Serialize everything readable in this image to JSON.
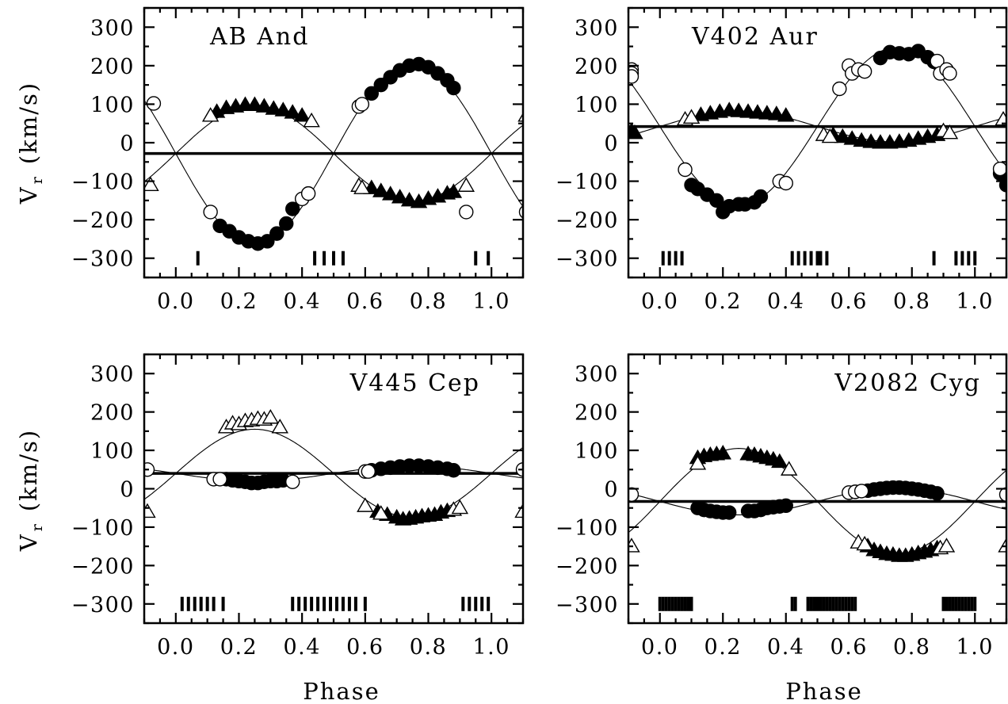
{
  "figure": {
    "x_axis_label": "Phase",
    "y_axis_label_main": "V",
    "y_axis_label_sub": "r",
    "y_axis_label_unit": "(km/s)"
  },
  "chart_data": [
    {
      "type": "scatter",
      "title": "AB And",
      "xlabel": "",
      "ylabel": "Vr (km/s)",
      "xlim": [
        -0.1,
        1.1
      ],
      "ylim": [
        -350,
        350
      ],
      "xticks": [
        0.0,
        0.2,
        0.4,
        0.6,
        0.8,
        1.0
      ],
      "xtick_labels": [
        "0.0",
        "0.2",
        "0.4",
        "0.6",
        "0.8",
        "1.0"
      ],
      "yticks": [
        -300,
        -200,
        -100,
        0,
        100,
        200,
        300
      ],
      "ytick_labels": [
        "−300",
        "−200",
        "−100",
        "0",
        "100",
        "200",
        "300"
      ],
      "gamma": -28,
      "series": [
        {
          "role": "primary-fit",
          "style": "curve",
          "K": 235,
          "sign": -1
        },
        {
          "role": "secondary-fit",
          "style": "curve",
          "K": 125,
          "sign": 1
        },
        {
          "role": "primary",
          "style": "filled-circle",
          "x": [
            0.14,
            0.17,
            0.2,
            0.23,
            0.26,
            0.29,
            0.32,
            0.35,
            0.37,
            0.62,
            0.65,
            0.68,
            0.71,
            0.74,
            0.77,
            0.8,
            0.83,
            0.86,
            0.88
          ],
          "y": [
            -216,
            -230,
            -246,
            -256,
            -262,
            -256,
            -236,
            -210,
            -172,
            128,
            150,
            170,
            188,
            200,
            204,
            196,
            180,
            162,
            142
          ]
        },
        {
          "role": "primary",
          "style": "open-circle",
          "x": [
            -0.07,
            0.11,
            0.4,
            0.42,
            0.58,
            0.59,
            0.92,
            1.11
          ],
          "y": [
            102,
            -180,
            -146,
            -132,
            94,
            100,
            -180,
            -180
          ]
        },
        {
          "role": "secondary",
          "style": "filled-triangle",
          "x": [
            0.13,
            0.16,
            0.19,
            0.22,
            0.25,
            0.28,
            0.31,
            0.34,
            0.37,
            0.4,
            0.62,
            0.65,
            0.68,
            0.71,
            0.74,
            0.77,
            0.8,
            0.83,
            0.86,
            0.88
          ],
          "y": [
            80,
            90,
            94,
            98,
            98,
            94,
            88,
            84,
            78,
            70,
            -118,
            -126,
            -134,
            -142,
            -150,
            -154,
            -146,
            -140,
            -132,
            -128
          ]
        },
        {
          "role": "secondary",
          "style": "open-triangle",
          "x": [
            -0.08,
            0.11,
            0.43,
            0.58,
            0.59,
            0.92,
            1.11
          ],
          "y": [
            -110,
            70,
            56,
            -112,
            -118,
            -112,
            70
          ]
        },
        {
          "role": "observation-epochs",
          "style": "vertical-tick",
          "x": [
            0.07,
            0.44,
            0.47,
            0.5,
            0.53,
            0.95,
            0.99
          ]
        }
      ]
    },
    {
      "type": "scatter",
      "title": "V402 Aur",
      "xlabel": "",
      "ylabel": "",
      "xlim": [
        -0.1,
        1.1
      ],
      "ylim": [
        -350,
        350
      ],
      "xticks": [
        0.0,
        0.2,
        0.4,
        0.6,
        0.8,
        1.0
      ],
      "xtick_labels": [
        "0.0",
        "0.2",
        "0.4",
        "0.6",
        "0.8",
        "1.0"
      ],
      "yticks": [
        -300,
        -200,
        -100,
        0,
        100,
        200,
        300
      ],
      "ytick_labels": [
        "−300",
        "−200",
        "−100",
        "0",
        "100",
        "200",
        "300"
      ],
      "gamma": 42,
      "series": [
        {
          "role": "primary-fit",
          "style": "curve",
          "K": 205,
          "sign": -1
        },
        {
          "role": "secondary-fit",
          "style": "curve",
          "K": 40,
          "sign": 1
        },
        {
          "role": "primary",
          "style": "filled-circle",
          "x": [
            0.1,
            0.12,
            0.15,
            0.18,
            0.2,
            0.22,
            0.25,
            0.27,
            0.3,
            0.32,
            0.7,
            0.73,
            0.76,
            0.79,
            0.82,
            0.85,
            0.87,
            1.08,
            1.1
          ],
          "y": [
            -110,
            -120,
            -135,
            -150,
            -180,
            -165,
            -160,
            -160,
            -155,
            -140,
            220,
            235,
            232,
            230,
            238,
            222,
            210,
            -80,
            -110
          ]
        },
        {
          "role": "primary",
          "style": "open-circle",
          "x": [
            -0.09,
            -0.09,
            -0.09,
            0.08,
            0.38,
            0.4,
            0.57,
            0.6,
            0.61,
            0.63,
            0.65,
            0.88,
            0.89,
            0.91,
            0.92,
            1.08
          ],
          "y": [
            190,
            180,
            172,
            -70,
            -100,
            -105,
            140,
            200,
            180,
            190,
            185,
            212,
            180,
            190,
            180,
            -68
          ]
        },
        {
          "role": "secondary",
          "style": "filled-triangle",
          "x": [
            -0.09,
            -0.08,
            0.1,
            0.13,
            0.16,
            0.19,
            0.22,
            0.25,
            0.28,
            0.31,
            0.34,
            0.37,
            0.4,
            0.55,
            0.58,
            0.61,
            0.64,
            0.67,
            0.7,
            0.73,
            0.76,
            0.79,
            0.82,
            0.85,
            0.88
          ],
          "y": [
            30,
            25,
            65,
            72,
            76,
            80,
            84,
            82,
            80,
            78,
            76,
            74,
            70,
            20,
            15,
            10,
            5,
            2,
            0,
            0,
            2,
            5,
            10,
            15,
            20
          ]
        },
        {
          "role": "secondary",
          "style": "open-triangle",
          "x": [
            0.08,
            0.1,
            0.52,
            0.54,
            0.9,
            0.92,
            1.09
          ],
          "y": [
            60,
            65,
            20,
            15,
            30,
            25,
            60
          ]
        },
        {
          "role": "observation-epochs",
          "style": "vertical-tick",
          "x": [
            0.01,
            0.03,
            0.05,
            0.07,
            0.42,
            0.44,
            0.46,
            0.48,
            0.5,
            0.51,
            0.53,
            0.87,
            0.94,
            0.96,
            0.98,
            1.0
          ]
        }
      ]
    },
    {
      "type": "scatter",
      "title": "V445 Cep",
      "xlabel": "Phase",
      "ylabel": "Vr (km/s)",
      "xlim": [
        -0.1,
        1.1
      ],
      "ylim": [
        -350,
        350
      ],
      "xticks": [
        0.0,
        0.2,
        0.4,
        0.6,
        0.8,
        1.0
      ],
      "xtick_labels": [
        "0.0",
        "0.2",
        "0.4",
        "0.6",
        "0.8",
        "1.0"
      ],
      "yticks": [
        -300,
        -200,
        -100,
        0,
        100,
        200,
        300
      ],
      "ytick_labels": [
        "−300",
        "−200",
        "−100",
        "0",
        "100",
        "200",
        "300"
      ],
      "gamma": 40,
      "series": [
        {
          "role": "primary-fit",
          "style": "curve",
          "K": 20,
          "sign": -1
        },
        {
          "role": "secondary-fit",
          "style": "curve",
          "K": 115,
          "sign": 1
        },
        {
          "role": "primary",
          "style": "filled-circle",
          "x": [
            0.16,
            0.18,
            0.2,
            0.22,
            0.24,
            0.26,
            0.28,
            0.3,
            0.32,
            0.34,
            0.62,
            0.65,
            0.68,
            0.71,
            0.74,
            0.77,
            0.8,
            0.83,
            0.86,
            0.88
          ],
          "y": [
            25,
            22,
            20,
            18,
            15,
            15,
            18,
            20,
            20,
            22,
            48,
            52,
            55,
            58,
            60,
            60,
            58,
            55,
            52,
            48
          ]
        },
        {
          "role": "primary",
          "style": "open-circle",
          "x": [
            -0.09,
            0.12,
            0.14,
            0.37,
            0.6,
            0.61,
            1.1
          ],
          "y": [
            50,
            25,
            25,
            18,
            45,
            45,
            50
          ]
        },
        {
          "role": "secondary",
          "style": "filled-triangle",
          "x": [
            0.64,
            0.67,
            0.7,
            0.72,
            0.74,
            0.76,
            0.78,
            0.8,
            0.82,
            0.84,
            0.86
          ],
          "y": [
            -60,
            -68,
            -75,
            -80,
            -78,
            -75,
            -72,
            -70,
            -68,
            -62,
            -58
          ]
        },
        {
          "role": "secondary",
          "style": "open-triangle",
          "x": [
            0.16,
            0.18,
            0.2,
            0.22,
            0.24,
            0.26,
            0.28,
            0.3,
            0.33,
            0.6,
            0.65,
            0.88,
            0.9,
            -0.09,
            1.1
          ],
          "y": [
            160,
            170,
            168,
            176,
            178,
            182,
            180,
            185,
            160,
            -45,
            -65,
            -55,
            -50,
            -60,
            -60
          ]
        },
        {
          "role": "observation-epochs",
          "style": "vertical-tick",
          "x": [
            0.02,
            0.04,
            0.06,
            0.08,
            0.1,
            0.12,
            0.15,
            0.37,
            0.39,
            0.41,
            0.43,
            0.45,
            0.47,
            0.49,
            0.51,
            0.53,
            0.55,
            0.57,
            0.6,
            0.91,
            0.93,
            0.95,
            0.97,
            0.99
          ]
        }
      ]
    },
    {
      "type": "scatter",
      "title": "V2082 Cyg",
      "xlabel": "Phase",
      "ylabel": "",
      "xlim": [
        -0.1,
        1.1
      ],
      "ylim": [
        -350,
        350
      ],
      "xticks": [
        0.0,
        0.2,
        0.4,
        0.6,
        0.8,
        1.0
      ],
      "xtick_labels": [
        "0.0",
        "0.2",
        "0.4",
        "0.6",
        "0.8",
        "1.0"
      ],
      "yticks": [
        -300,
        -200,
        -100,
        0,
        100,
        200,
        300
      ],
      "ytick_labels": [
        "−300",
        "−200",
        "−100",
        "0",
        "100",
        "200",
        "300"
      ],
      "gamma": -33,
      "series": [
        {
          "role": "primary-fit",
          "style": "curve",
          "K": 35,
          "sign": -1
        },
        {
          "role": "secondary-fit",
          "style": "curve",
          "K": 138,
          "sign": 1
        },
        {
          "role": "primary",
          "style": "filled-circle",
          "x": [
            0.12,
            0.14,
            0.16,
            0.18,
            0.2,
            0.22,
            0.28,
            0.3,
            0.32,
            0.34,
            0.36,
            0.38,
            0.4,
            0.66,
            0.68,
            0.7,
            0.72,
            0.74,
            0.76,
            0.78,
            0.8,
            0.82,
            0.84,
            0.86,
            0.88
          ],
          "y": [
            -50,
            -55,
            -58,
            -60,
            -62,
            -62,
            -58,
            -58,
            -55,
            -50,
            -48,
            -46,
            -44,
            -5,
            -2,
            0,
            2,
            3,
            3,
            2,
            0,
            -2,
            -5,
            -8,
            -12
          ]
        },
        {
          "role": "primary",
          "style": "open-circle",
          "x": [
            -0.09,
            0.6,
            0.62,
            0.64,
            1.1
          ],
          "y": [
            -15,
            -10,
            -8,
            -6,
            -15
          ]
        },
        {
          "role": "secondary",
          "style": "filled-triangle",
          "x": [
            0.12,
            0.14,
            0.16,
            0.18,
            0.2,
            0.28,
            0.3,
            0.32,
            0.34,
            0.36,
            0.38,
            0.66,
            0.68,
            0.7,
            0.72,
            0.74,
            0.76,
            0.78,
            0.8,
            0.82,
            0.84,
            0.86,
            0.88
          ],
          "y": [
            80,
            85,
            88,
            90,
            92,
            90,
            88,
            84,
            80,
            76,
            70,
            -150,
            -160,
            -165,
            -170,
            -172,
            -175,
            -175,
            -172,
            -168,
            -164,
            -160,
            -155
          ]
        },
        {
          "role": "secondary",
          "style": "open-triangle",
          "x": [
            -0.09,
            0.12,
            0.41,
            0.63,
            0.65,
            0.89,
            0.91,
            1.1
          ],
          "y": [
            -150,
            65,
            50,
            -140,
            -145,
            -155,
            -150,
            -150
          ]
        },
        {
          "role": "observation-epochs",
          "style": "vertical-tick",
          "x": [
            0.0,
            0.01,
            0.02,
            0.03,
            0.04,
            0.05,
            0.06,
            0.07,
            0.08,
            0.09,
            0.1,
            0.42,
            0.43,
            0.47,
            0.48,
            0.49,
            0.5,
            0.51,
            0.52,
            0.53,
            0.54,
            0.55,
            0.56,
            0.57,
            0.58,
            0.59,
            0.6,
            0.61,
            0.62,
            0.9,
            0.91,
            0.92,
            0.93,
            0.94,
            0.95,
            0.96,
            0.97,
            0.98,
            0.99,
            1.0
          ]
        }
      ]
    }
  ]
}
